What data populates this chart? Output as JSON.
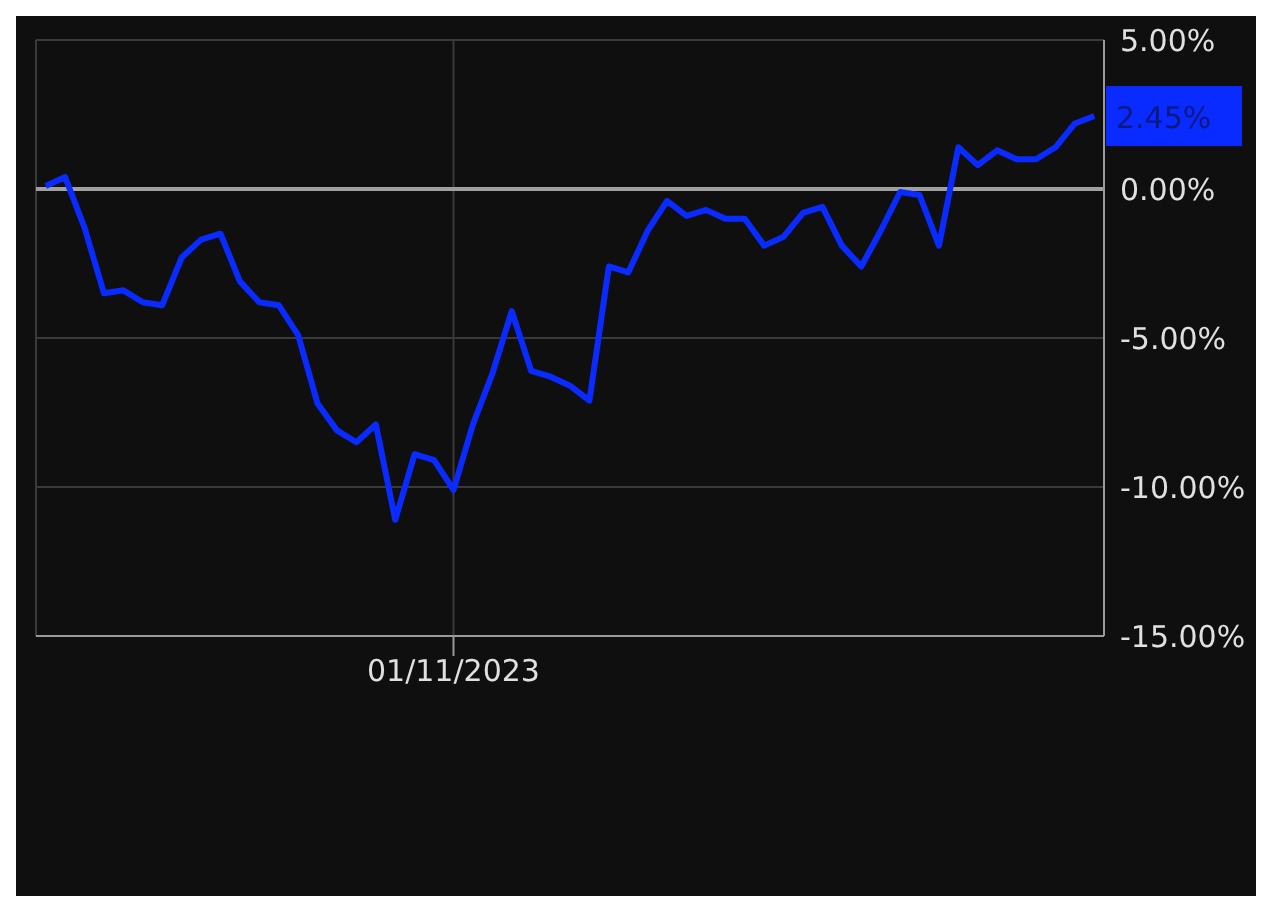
{
  "chart_data": {
    "type": "line",
    "categories": [
      null,
      null,
      null,
      null,
      null,
      null,
      null,
      null,
      null,
      null,
      null,
      null,
      null,
      null,
      null,
      null,
      null,
      null,
      null,
      null,
      null,
      "01/11/2023",
      null,
      null,
      null,
      null,
      null,
      null,
      null,
      null,
      null,
      null,
      null,
      null,
      null,
      null,
      null,
      null,
      null,
      null,
      null,
      null,
      null,
      null,
      null,
      null,
      null,
      null,
      null,
      null,
      null,
      null,
      null,
      null,
      null
    ],
    "ylim": [
      -15,
      5
    ],
    "yticks": [
      {
        "value": 5,
        "label": "5.00%"
      },
      {
        "value": 0,
        "label": "0.00%"
      },
      {
        "value": -5,
        "label": "-5.00%"
      },
      {
        "value": -10,
        "label": "-10.00%"
      },
      {
        "value": -15,
        "label": "-15.00%"
      }
    ],
    "grid": true,
    "marker": "none",
    "line_style": "solid",
    "ref_lines": [
      {
        "axis": "y",
        "value": 0,
        "color": "#a0a0a0"
      }
    ],
    "annotations": [
      "2.45%"
    ],
    "series": [
      {
        "color": "#0a2bff",
        "values": [
          0.1,
          0.4,
          -1.3,
          -3.5,
          -3.4,
          -3.8,
          -3.9,
          -2.3,
          -1.7,
          -1.5,
          -3.1,
          -3.8,
          -3.9,
          -4.9,
          -7.2,
          -8.1,
          -8.5,
          -7.9,
          -11.1,
          -8.9,
          -9.1,
          -10.1,
          -7.9,
          -6.2,
          -4.1,
          -6.1,
          -6.3,
          -6.6,
          -7.1,
          -2.6,
          -2.8,
          -1.4,
          -0.4,
          -0.9,
          -0.7,
          -1,
          -1,
          -1.9,
          -1.6,
          -0.8,
          -0.6,
          -1.9,
          -2.6,
          -1.4,
          -0.1,
          -0.2,
          -1.9,
          1.4,
          0.8,
          1.3,
          1,
          1,
          1.4,
          2.2,
          2.45
        ]
      }
    ]
  }
}
